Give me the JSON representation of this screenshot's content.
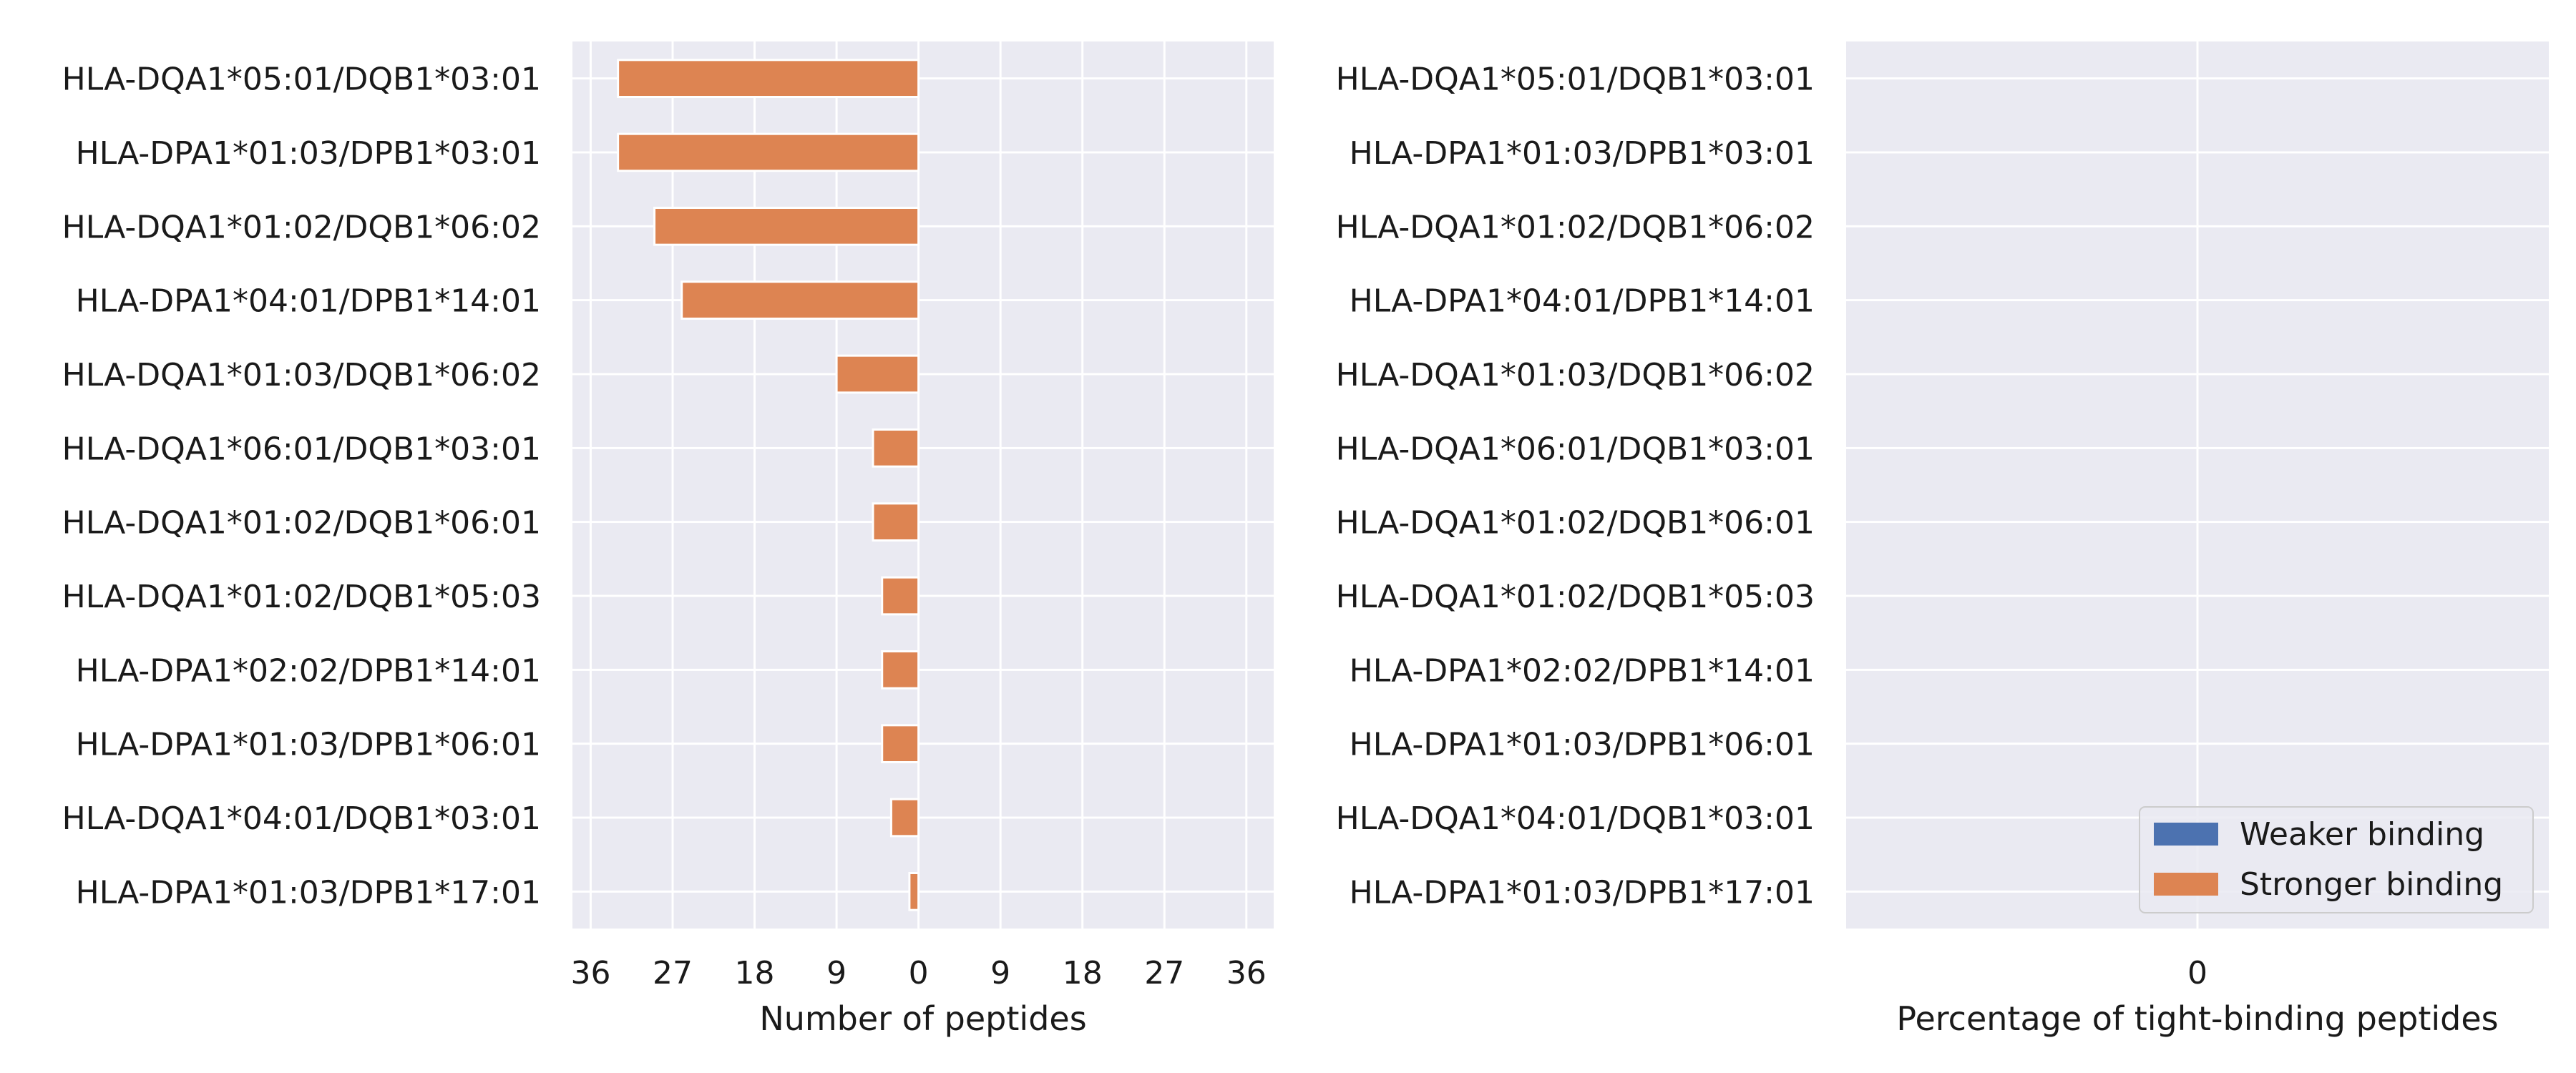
{
  "chart_data": [
    {
      "type": "bar",
      "orientation": "horizontal",
      "categories": [
        "HLA-DQA1*05:01/DQB1*03:01",
        "HLA-DPA1*01:03/DPB1*03:01",
        "HLA-DQA1*01:02/DQB1*06:02",
        "HLA-DPA1*04:01/DPB1*14:01",
        "HLA-DQA1*01:03/DQB1*06:02",
        "HLA-DQA1*06:01/DQB1*03:01",
        "HLA-DQA1*01:02/DQB1*06:01",
        "HLA-DQA1*01:02/DQB1*05:03",
        "HLA-DPA1*02:02/DPB1*14:01",
        "HLA-DPA1*01:03/DPB1*06:01",
        "HLA-DQA1*04:01/DQB1*03:01",
        "HLA-DPA1*01:03/DPB1*17:01"
      ],
      "series": [
        {
          "name": "Weaker binding",
          "color": "#4c72b0",
          "values": [
            0,
            0,
            0,
            0,
            0,
            0,
            0,
            0,
            0,
            0,
            0,
            0
          ]
        },
        {
          "name": "Stronger binding",
          "color": "#dd8452",
          "values": [
            -33,
            -33,
            -29,
            -26,
            -9,
            -5,
            -5,
            -4,
            -4,
            -4,
            -3,
            -1
          ]
        }
      ],
      "xlabel": "Number of peptides",
      "xlim": [
        -38,
        39
      ],
      "xticks": [
        -36,
        -27,
        -18,
        -9,
        0,
        9,
        18,
        27,
        36
      ],
      "xtick_labels": [
        "36",
        "27",
        "18",
        "9",
        "0",
        "9",
        "18",
        "27",
        "36"
      ],
      "grid": true
    },
    {
      "type": "bar",
      "orientation": "horizontal",
      "categories": [
        "HLA-DQA1*05:01/DQB1*03:01",
        "HLA-DPA1*01:03/DPB1*03:01",
        "HLA-DQA1*01:02/DQB1*06:02",
        "HLA-DPA1*04:01/DPB1*14:01",
        "HLA-DQA1*01:03/DQB1*06:02",
        "HLA-DQA1*06:01/DQB1*03:01",
        "HLA-DQA1*01:02/DQB1*06:01",
        "HLA-DQA1*01:02/DQB1*05:03",
        "HLA-DPA1*02:02/DPB1*14:01",
        "HLA-DPA1*01:03/DPB1*06:01",
        "HLA-DQA1*04:01/DQB1*03:01",
        "HLA-DPA1*01:03/DPB1*17:01"
      ],
      "series": [],
      "xlabel": "Percentage of tight-binding peptides",
      "xlim": [
        -1,
        1
      ],
      "xticks": [
        0
      ],
      "xtick_labels": [
        "0"
      ],
      "grid": true,
      "legend": {
        "location": "lower right",
        "entries": [
          {
            "label": "Weaker binding",
            "color": "#4c72b0"
          },
          {
            "label": "Stronger binding",
            "color": "#dd8452"
          }
        ]
      }
    }
  ],
  "colors": {
    "axes_background": "#eaeaf2",
    "grid": "#ffffff",
    "weaker": "#4c72b0",
    "stronger": "#dd8452"
  }
}
